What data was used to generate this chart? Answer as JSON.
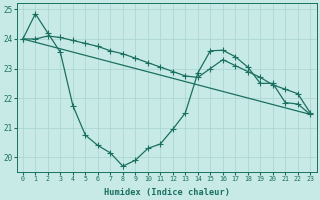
{
  "xlabel": "Humidex (Indice chaleur)",
  "xlim": [
    -0.5,
    23.5
  ],
  "ylim": [
    19.5,
    25.2
  ],
  "xticks": [
    0,
    1,
    2,
    3,
    4,
    5,
    6,
    7,
    8,
    9,
    10,
    11,
    12,
    13,
    14,
    15,
    16,
    17,
    18,
    19,
    20,
    21,
    22,
    23
  ],
  "yticks": [
    20,
    21,
    22,
    23,
    24,
    25
  ],
  "bg_color": "#c8eae7",
  "grid_color": "#a8d4d0",
  "line_color": "#1a7060",
  "line1_x": [
    0,
    1,
    2,
    3,
    4,
    5,
    6,
    7,
    8,
    9,
    10,
    11,
    12,
    13,
    14,
    15,
    16,
    17,
    18,
    19,
    20,
    21,
    22,
    23
  ],
  "line1_y": [
    24.0,
    24.85,
    24.2,
    23.55,
    21.75,
    20.75,
    20.4,
    20.15,
    19.7,
    19.9,
    20.3,
    20.45,
    20.95,
    21.5,
    22.85,
    23.6,
    23.62,
    23.4,
    23.05,
    22.5,
    22.5,
    21.85,
    21.8,
    21.45
  ],
  "line2_x": [
    0,
    23
  ],
  "line2_y": [
    24.0,
    21.45
  ],
  "line3_x": [
    0,
    1,
    2,
    3,
    4,
    5,
    6,
    7,
    8,
    9,
    10,
    11,
    12,
    13,
    14,
    15,
    16,
    17,
    18,
    19,
    20,
    21,
    22,
    23
  ],
  "line3_y": [
    24.0,
    24.0,
    24.1,
    24.05,
    23.95,
    23.85,
    23.75,
    23.6,
    23.5,
    23.35,
    23.2,
    23.05,
    22.9,
    22.75,
    22.7,
    23.0,
    23.3,
    23.1,
    22.9,
    22.7,
    22.45,
    22.3,
    22.15,
    21.5
  ]
}
